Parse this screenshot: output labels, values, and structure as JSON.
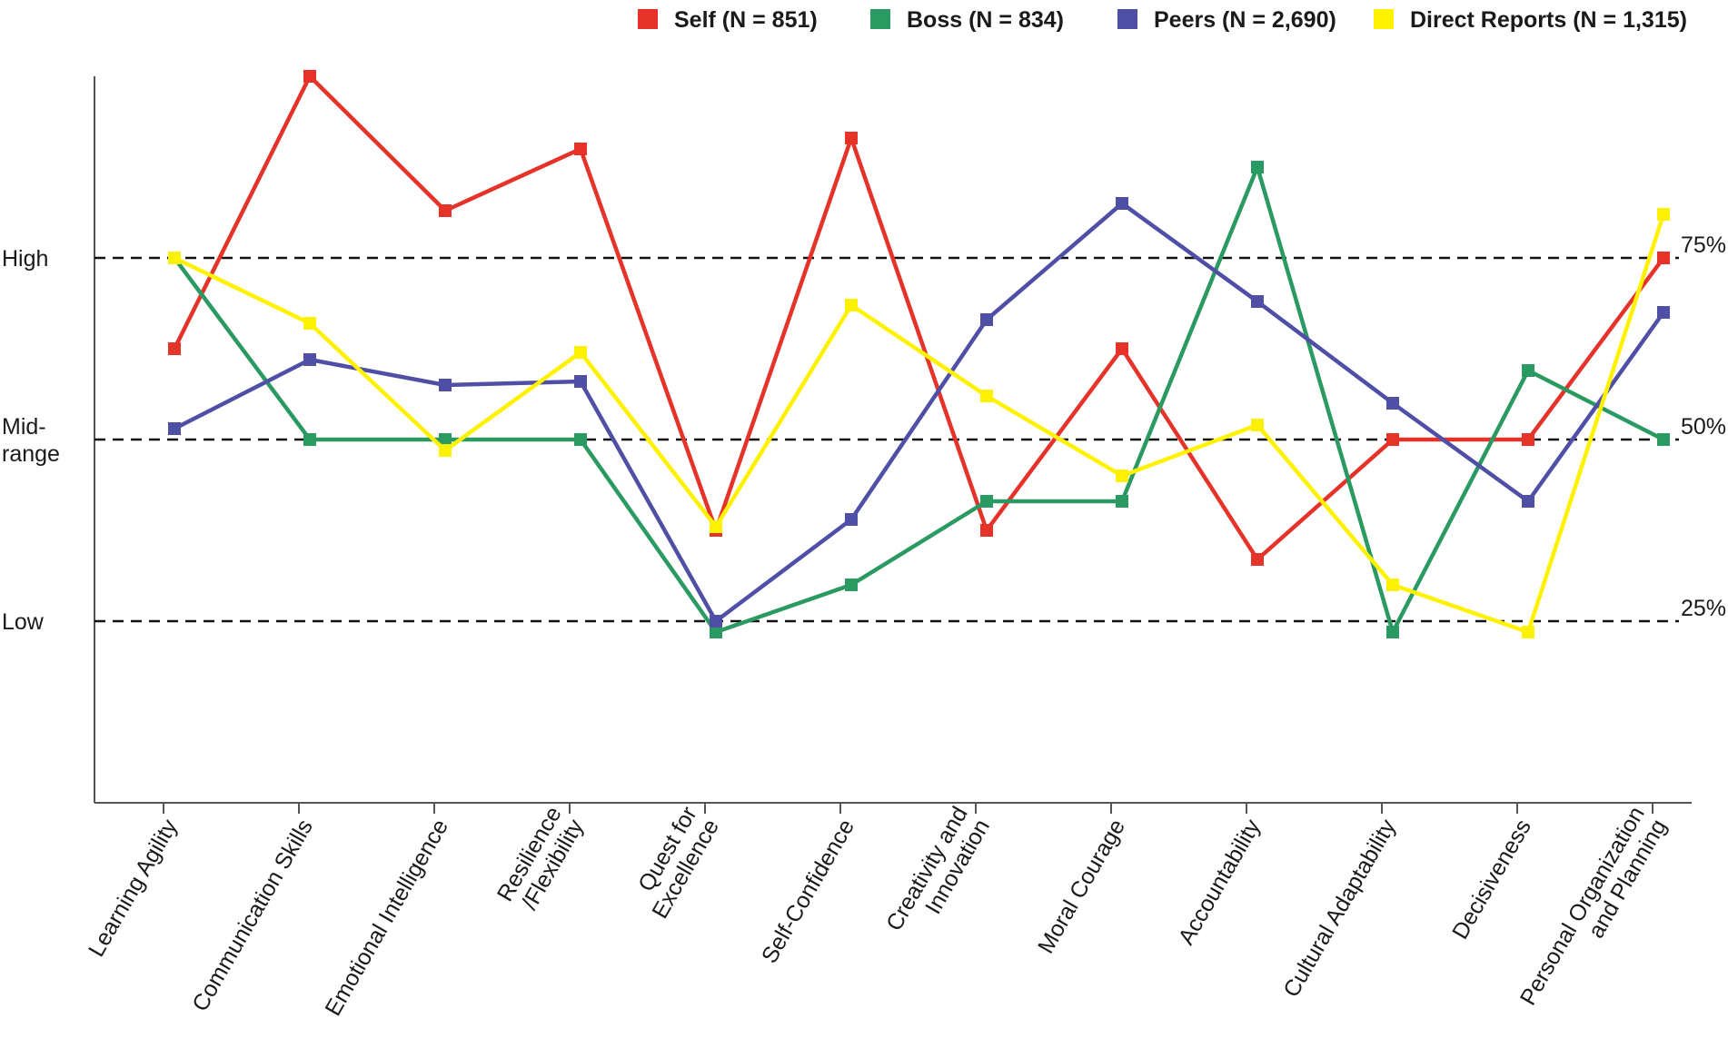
{
  "chart_data": {
    "type": "line",
    "title": "",
    "xlabel": "",
    "ylabel": "",
    "categories": [
      [
        "Learning Agility"
      ],
      [
        "Communication Skills"
      ],
      [
        "Emotional Intelligence"
      ],
      [
        "Resilience",
        "/Flexibility"
      ],
      [
        "Quest for",
        "Excellence"
      ],
      [
        "Self-Confidence"
      ],
      [
        "Creativity and",
        "Innovation"
      ],
      [
        "Moral Courage"
      ],
      [
        "Accountability"
      ],
      [
        "Cultural Adaptability"
      ],
      [
        "Decisiveness"
      ],
      [
        "Personal Organization",
        "and Planning"
      ]
    ],
    "ylim": [
      0,
      100
    ],
    "reference_lines": [
      {
        "value": 75,
        "label": "75%"
      },
      {
        "value": 50,
        "label": "50%"
      },
      {
        "value": 25,
        "label": "25%"
      }
    ],
    "band_labels": [
      {
        "value": 75,
        "lines": [
          "High"
        ]
      },
      {
        "value": 50,
        "lines": [
          "Mid-",
          "range"
        ]
      },
      {
        "value": 25,
        "lines": [
          "Low"
        ]
      }
    ],
    "legend_position": "top-right",
    "series": [
      {
        "name": "Self (N = 851)",
        "color": "#e5332a",
        "values": [
          62.5,
          100,
          81.5,
          90,
          37.5,
          91.5,
          37.5,
          62.5,
          33.5,
          50,
          50,
          75
        ]
      },
      {
        "name": "Boss (N = 834)",
        "color": "#2a9a62",
        "values": [
          75,
          50,
          50,
          50,
          23.5,
          30,
          41.5,
          41.5,
          87.5,
          23.5,
          59.5,
          50
        ]
      },
      {
        "name": "Peers (N = 2,690)",
        "color": "#4f4fa6",
        "values": [
          51.5,
          61,
          57.5,
          58,
          25,
          39,
          66.5,
          82.5,
          69,
          55,
          41.5,
          67.5
        ]
      },
      {
        "name": "Direct Reports (N = 1,315)",
        "color": "#fff200",
        "values": [
          75,
          66,
          48.5,
          62,
          38,
          68.5,
          56,
          45,
          52,
          30,
          23.5,
          81
        ]
      }
    ]
  }
}
